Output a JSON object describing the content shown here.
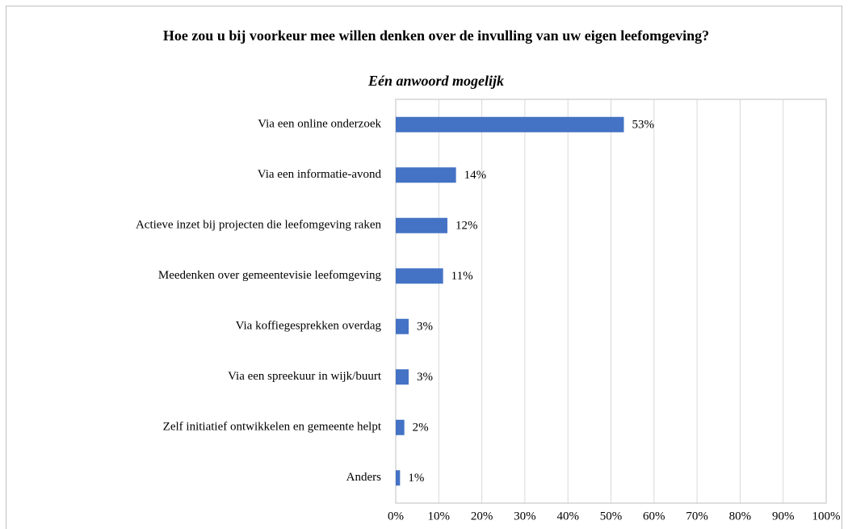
{
  "chart_data": {
    "type": "bar",
    "orientation": "horizontal",
    "title": "Hoe zou u bij voorkeur mee willen denken over de invulling van uw eigen leefomgeving?",
    "subtitle": "Eén anwoord mogelijk",
    "categories": [
      "Via een online onderzoek",
      "Via een informatie-avond",
      "Actieve inzet bij projecten die leefomgeving raken",
      "Meedenken over gemeentevisie leefomgeving",
      "Via koffiegesprekken overdag",
      "Via een spreekuur in wijk/buurt",
      "Zelf initiatief ontwikkelen en gemeente helpt",
      "Anders"
    ],
    "values": [
      53,
      14,
      12,
      11,
      3,
      3,
      2,
      1
    ],
    "value_labels": [
      "53%",
      "14%",
      "12%",
      "11%",
      "3%",
      "3%",
      "2%",
      "1%"
    ],
    "color": "#4472c4",
    "xlim": [
      0,
      100
    ],
    "xticks": [
      {
        "value": 0,
        "label": "0%"
      },
      {
        "value": 10,
        "label": "10%"
      },
      {
        "value": 20,
        "label": "20%"
      },
      {
        "value": 30,
        "label": "30%"
      },
      {
        "value": 40,
        "label": "40%"
      },
      {
        "value": 50,
        "label": "50%"
      },
      {
        "value": 60,
        "label": "60%"
      },
      {
        "value": 70,
        "label": "70%"
      },
      {
        "value": 80,
        "label": "80%"
      },
      {
        "value": 90,
        "label": "90%"
      },
      {
        "value": 100,
        "label": "100%"
      }
    ],
    "grid": true
  }
}
